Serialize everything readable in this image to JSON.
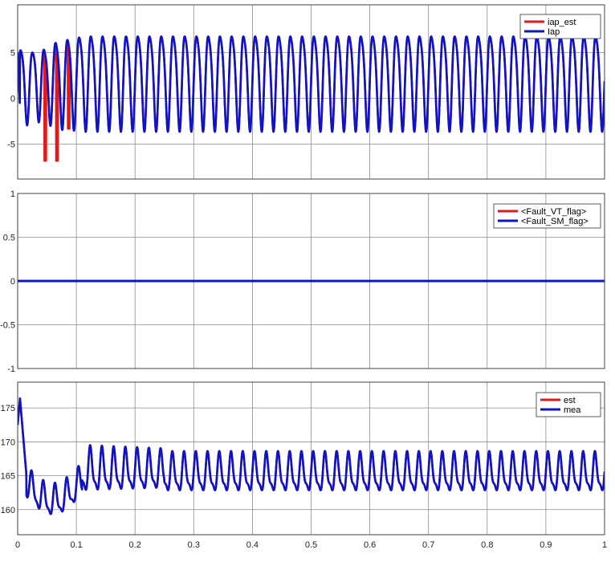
{
  "colors": {
    "red": "#e31a1c",
    "blue": "#0b14c8",
    "grid": "#8c8c8c",
    "frame": "#404040",
    "background": "#ffffff"
  },
  "chart_data": [
    {
      "type": "line",
      "x_range": [
        0,
        1
      ],
      "ylim": [
        -8.8,
        10.2
      ],
      "yticks": [
        -5,
        0,
        5
      ],
      "ytick_labels": [
        "-5",
        "0",
        "5"
      ],
      "grid": true,
      "legend_position": "top-right",
      "series": [
        {
          "name": "iap_est",
          "color": "#e31a1c",
          "description_values": {
            "steady_state_min": -3.0,
            "steady_state_max": 7.6,
            "frequency_cycles": 50,
            "startup_min": -6.8
          },
          "samples": [
            {
              "x": 0.0,
              "y": 5.0
            },
            {
              "x": 0.008,
              "y": -5.1
            },
            {
              "x": 0.018,
              "y": 6.3
            },
            {
              "x": 0.028,
              "y": -4.0
            },
            {
              "x": 0.038,
              "y": 6.9
            },
            {
              "x": 0.047,
              "y": -6.8
            },
            {
              "x": 0.057,
              "y": 7.6
            },
            {
              "x": 0.067,
              "y": -6.2
            },
            {
              "x": 0.077,
              "y": 7.5
            },
            {
              "x": 0.087,
              "y": -3.2
            },
            {
              "x": 0.1,
              "y": 7.6
            },
            {
              "x": 0.11,
              "y": -3.0
            },
            {
              "x": 0.5,
              "y": 7.6
            },
            {
              "x": 0.51,
              "y": -3.0
            },
            {
              "x": 1.0,
              "y": 7.3
            }
          ]
        },
        {
          "name": "Iap",
          "color": "#0b14c8",
          "samples": [
            {
              "x": 0.0,
              "y": 5.0
            },
            {
              "x": 0.008,
              "y": -4.8
            },
            {
              "x": 0.018,
              "y": 6.3
            },
            {
              "x": 0.028,
              "y": -3.8
            },
            {
              "x": 0.038,
              "y": 7.0
            },
            {
              "x": 0.047,
              "y": -4.0
            },
            {
              "x": 0.057,
              "y": 8.1
            },
            {
              "x": 0.067,
              "y": -3.5
            },
            {
              "x": 0.077,
              "y": 7.6
            },
            {
              "x": 0.087,
              "y": -3.0
            },
            {
              "x": 0.1,
              "y": 7.5
            },
            {
              "x": 0.11,
              "y": -3.0
            },
            {
              "x": 0.5,
              "y": 7.4
            },
            {
              "x": 0.51,
              "y": -3.0
            },
            {
              "x": 1.0,
              "y": 7.3
            }
          ]
        }
      ]
    },
    {
      "type": "line",
      "x_range": [
        0,
        1
      ],
      "ylim": [
        -1,
        1
      ],
      "yticks": [
        -1,
        -0.5,
        0,
        0.5,
        1
      ],
      "ytick_labels": [
        "-1",
        "-0.5",
        "0",
        "0.5",
        "1"
      ],
      "grid": true,
      "legend_position": "top-right",
      "series": [
        {
          "name": "<Fault_VT_flag>",
          "color": "#e31a1c",
          "x": [
            0,
            1
          ],
          "values": [
            0,
            0
          ]
        },
        {
          "name": "<Fault_SM_flag>",
          "color": "#0b14c8",
          "x": [
            0,
            1
          ],
          "values": [
            0,
            0
          ]
        }
      ]
    },
    {
      "type": "line",
      "x_range": [
        0,
        1
      ],
      "xticks": [
        0,
        0.1,
        0.2,
        0.3,
        0.4,
        0.5,
        0.6,
        0.7,
        0.8,
        0.9,
        1
      ],
      "xtick_labels": [
        "0",
        "0.1",
        "0.2",
        "0.3",
        "0.4",
        "0.5",
        "0.6",
        "0.7",
        "0.8",
        "0.9",
        "1"
      ],
      "ylim": [
        156.3,
        178.8
      ],
      "yticks": [
        160,
        165,
        170,
        175
      ],
      "ytick_labels": [
        "160",
        "165",
        "170",
        "175"
      ],
      "grid": true,
      "legend_position": "top-right",
      "series": [
        {
          "name": "est",
          "color": "#e31a1c",
          "samples": [
            {
              "x": 0.0,
              "y": 172.5
            },
            {
              "x": 0.004,
              "y": 176.4
            },
            {
              "x": 0.015,
              "y": 165.0
            },
            {
              "x": 0.03,
              "y": 168.2
            },
            {
              "x": 0.034,
              "y": 159.6
            },
            {
              "x": 0.055,
              "y": 158.2
            },
            {
              "x": 0.09,
              "y": 160.3
            },
            {
              "x": 0.17,
              "y": 168.9
            },
            {
              "x": 0.18,
              "y": 162.6
            },
            {
              "x": 1.0,
              "y": 165.0
            }
          ]
        },
        {
          "name": "mea",
          "color": "#0b14c8",
          "samples": [
            {
              "x": 0.0,
              "y": 172.5
            },
            {
              "x": 0.004,
              "y": 176.4
            },
            {
              "x": 0.015,
              "y": 165.0
            },
            {
              "x": 0.03,
              "y": 168.2
            },
            {
              "x": 0.034,
              "y": 159.6
            },
            {
              "x": 0.055,
              "y": 158.2
            },
            {
              "x": 0.09,
              "y": 160.3
            },
            {
              "x": 0.17,
              "y": 168.9
            },
            {
              "x": 0.18,
              "y": 162.6
            },
            {
              "x": 1.0,
              "y": 165.0
            }
          ]
        }
      ]
    }
  ]
}
